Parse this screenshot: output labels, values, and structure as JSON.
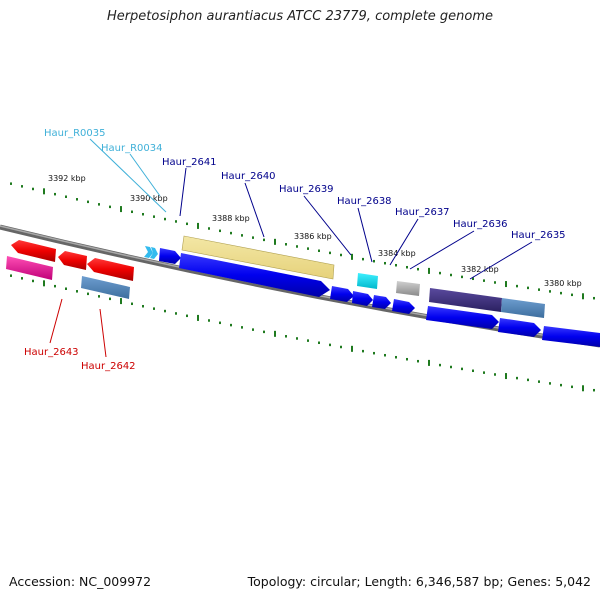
{
  "title": "Herpetosiphon aurantiacus ATCC 23779, complete genome",
  "accession": "Accession: NC_009972",
  "summary": "Topology: circular; Length: 6,346,587 bp; Genes: 5,042",
  "kbp_ticks": [
    "3392 kbp",
    "3390 kbp",
    "3388 kbp",
    "3386 kbp",
    "3384 kbp",
    "3382 kbp",
    "3380 kbp"
  ],
  "gene_labels": [
    "Haur_R0035",
    "Haur_R0034",
    "Haur_2641",
    "Haur_2640",
    "Haur_2639",
    "Haur_2638",
    "Haur_2637",
    "Haur_2636",
    "Haur_2635",
    "Haur_2643",
    "Haur_2642"
  ],
  "colors": {
    "backbone": "#7a7a7a",
    "tick": "#1f7a1f",
    "label_blue": "#00008b",
    "label_cyan": "#3fb0d8",
    "label_red": "#cc0000"
  }
}
